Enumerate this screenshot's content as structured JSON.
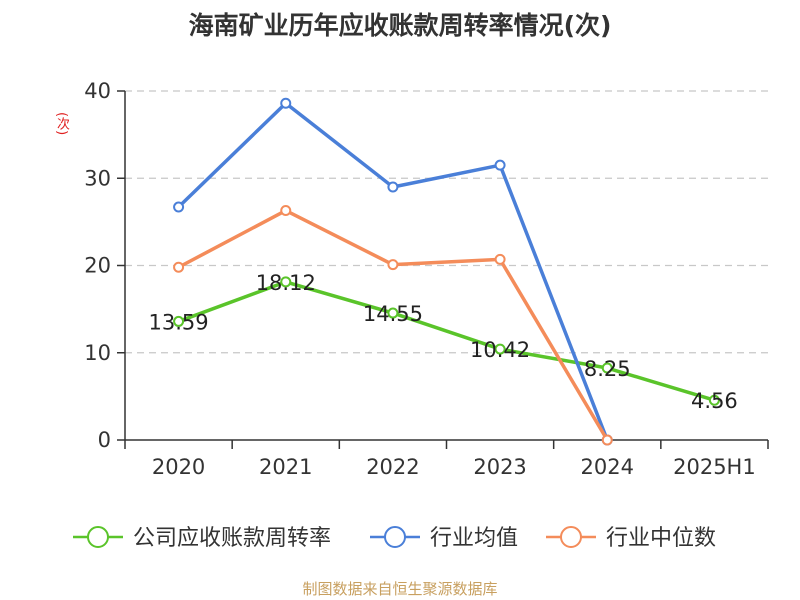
{
  "chart_data": {
    "type": "line",
    "title": "海南矿业历年应收账款周转率情况(次)",
    "ylabel": "(次)",
    "xlabel": "",
    "categories": [
      "2020",
      "2021",
      "2022",
      "2023",
      "2024",
      "2025H1"
    ],
    "ylim": [
      0,
      40
    ],
    "yticks": [
      0,
      10,
      20,
      30,
      40
    ],
    "grid": true,
    "legend_position": "bottom",
    "series": [
      {
        "name": "公司应收账款周转率",
        "color": "#5ac42a",
        "values": [
          13.59,
          18.12,
          14.55,
          10.42,
          8.25,
          4.56
        ],
        "labels": [
          "13.59",
          "18.12",
          "14.55",
          "10.42",
          "8.25",
          "4.56"
        ]
      },
      {
        "name": "行业均值",
        "color": "#4a7fd8",
        "values": [
          26.7,
          38.6,
          29.0,
          31.5,
          0,
          null
        ]
      },
      {
        "name": "行业中位数",
        "color": "#f48c5a",
        "values": [
          19.8,
          26.3,
          20.1,
          20.7,
          0,
          null
        ]
      }
    ]
  },
  "source": "制图数据来自恒生聚源数据库"
}
